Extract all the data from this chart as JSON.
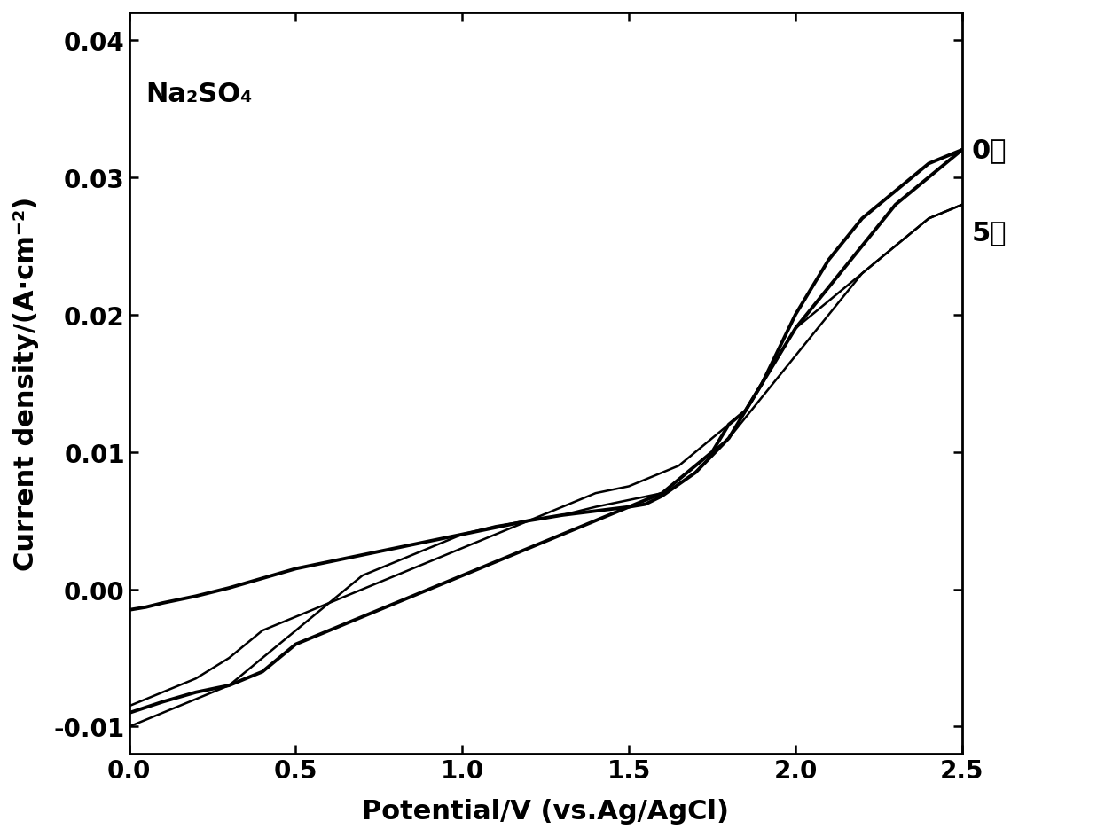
{
  "title_text": "Na₂SO₄",
  "xlabel": "Potential/V (vs.Ag/AgCl)",
  "ylabel": "Current density/(A·cm⁻²)",
  "xlim": [
    0.0,
    2.5
  ],
  "ylim": [
    -0.012,
    0.042
  ],
  "xticks": [
    0.0,
    0.5,
    1.0,
    1.5,
    2.0,
    2.5
  ],
  "yticks": [
    -0.01,
    0.0,
    0.01,
    0.02,
    0.03,
    0.04
  ],
  "label_0": "0层",
  "label_5": "5层",
  "curve0_forward_x": [
    0.0,
    0.05,
    0.1,
    0.2,
    0.3,
    0.4,
    0.5,
    0.6,
    0.7,
    0.8,
    0.9,
    1.0,
    1.1,
    1.2,
    1.3,
    1.4,
    1.5,
    1.55,
    1.6,
    1.7,
    1.8,
    1.9,
    2.0,
    2.1,
    2.2,
    2.3,
    2.4,
    2.5
  ],
  "curve0_forward_y": [
    -0.0015,
    -0.0013,
    -0.001,
    -0.0005,
    0.0001,
    0.0008,
    0.0015,
    0.002,
    0.0025,
    0.003,
    0.0035,
    0.004,
    0.0045,
    0.005,
    0.0054,
    0.0057,
    0.006,
    0.0062,
    0.0068,
    0.0085,
    0.011,
    0.015,
    0.02,
    0.024,
    0.027,
    0.029,
    0.031,
    0.032
  ],
  "curve0_backward_x": [
    2.5,
    2.4,
    2.3,
    2.2,
    2.1,
    2.0,
    1.95,
    1.9,
    1.85,
    1.8,
    1.75,
    1.7,
    1.65,
    1.6,
    1.55,
    1.5,
    1.4,
    1.3,
    1.2,
    1.1,
    1.0,
    0.9,
    0.8,
    0.7,
    0.6,
    0.5,
    0.4,
    0.3,
    0.2,
    0.1,
    0.05,
    0.0
  ],
  "curve0_backward_y": [
    0.032,
    0.03,
    0.028,
    0.025,
    0.022,
    0.019,
    0.017,
    0.015,
    0.013,
    0.012,
    0.01,
    0.009,
    0.008,
    0.007,
    0.0065,
    0.006,
    0.005,
    0.004,
    0.003,
    0.002,
    0.001,
    0.0,
    -0.001,
    -0.002,
    -0.003,
    -0.004,
    -0.006,
    -0.007,
    -0.0075,
    -0.0082,
    -0.0086,
    -0.009
  ],
  "curve5_forward_x": [
    0.0,
    0.05,
    0.1,
    0.2,
    0.3,
    0.4,
    0.5,
    0.6,
    0.7,
    0.8,
    0.9,
    1.0,
    1.1,
    1.2,
    1.3,
    1.4,
    1.5,
    1.6,
    1.7,
    1.8,
    1.9,
    2.0,
    2.1,
    2.2,
    2.3,
    2.4,
    2.5
  ],
  "curve5_forward_y": [
    -0.01,
    -0.0095,
    -0.009,
    -0.008,
    -0.007,
    -0.005,
    -0.003,
    -0.001,
    0.001,
    0.002,
    0.003,
    0.004,
    0.0046,
    0.005,
    0.0054,
    0.006,
    0.0065,
    0.007,
    0.009,
    0.011,
    0.014,
    0.017,
    0.02,
    0.023,
    0.025,
    0.027,
    0.028
  ],
  "curve5_backward_x": [
    2.5,
    2.4,
    2.3,
    2.2,
    2.1,
    2.0,
    1.95,
    1.9,
    1.85,
    1.8,
    1.75,
    1.7,
    1.65,
    1.6,
    1.55,
    1.5,
    1.4,
    1.3,
    1.2,
    1.1,
    1.0,
    0.9,
    0.8,
    0.7,
    0.6,
    0.5,
    0.4,
    0.3,
    0.2,
    0.1,
    0.0
  ],
  "curve5_backward_y": [
    0.028,
    0.027,
    0.025,
    0.023,
    0.021,
    0.019,
    0.017,
    0.015,
    0.013,
    0.012,
    0.011,
    0.01,
    0.009,
    0.0085,
    0.008,
    0.0075,
    0.007,
    0.006,
    0.005,
    0.004,
    0.003,
    0.002,
    0.001,
    0.0,
    -0.001,
    -0.002,
    -0.003,
    -0.005,
    -0.0065,
    -0.0075,
    -0.0085
  ],
  "line_color": "#000000",
  "background_color": "#ffffff",
  "tick_fontsize": 20,
  "label_fontsize": 22,
  "annotation_fontsize": 22,
  "linewidth_0": 2.8,
  "linewidth_5": 1.8
}
